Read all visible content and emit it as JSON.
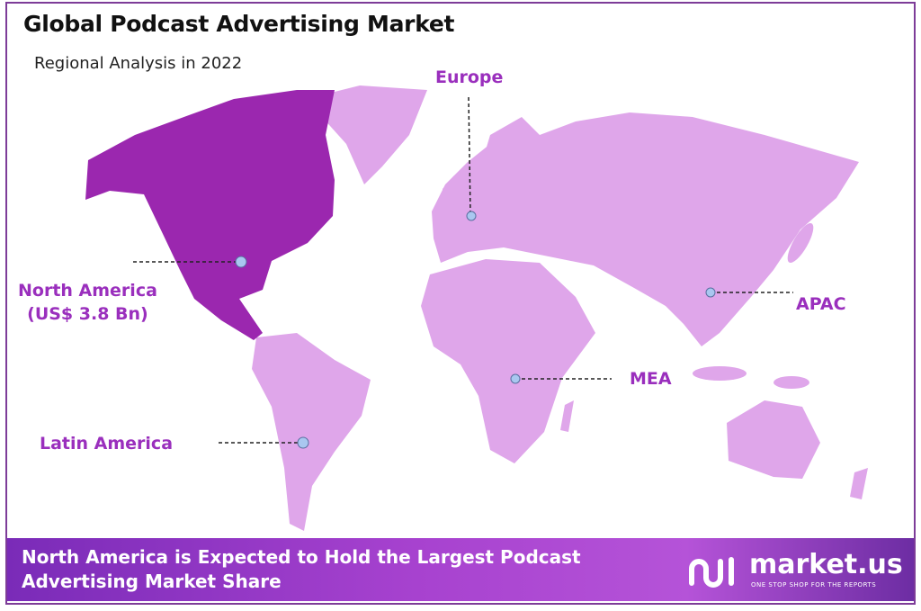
{
  "header": {
    "title": "Global Podcast Advertising Market",
    "subtitle": "Regional Analysis in 2022"
  },
  "colors": {
    "highlight_region": "#9b27af",
    "other_regions": "#dfa6ea",
    "label": "#9a2fbd",
    "marker": "#a9c7f0"
  },
  "regions": [
    {
      "name": "North America",
      "value": "(US$ 3.8 Bn)",
      "highlighted": true
    },
    {
      "name": "Europe"
    },
    {
      "name": "APAC"
    },
    {
      "name": "MEA"
    },
    {
      "name": "Latin America"
    }
  ],
  "footer": {
    "line1": "North America is Expected to Hold the Largest Podcast",
    "line2": "Advertising Market Share"
  },
  "logo": {
    "name": "market.us",
    "tagline": "ONE STOP SHOP FOR THE REPORTS"
  }
}
